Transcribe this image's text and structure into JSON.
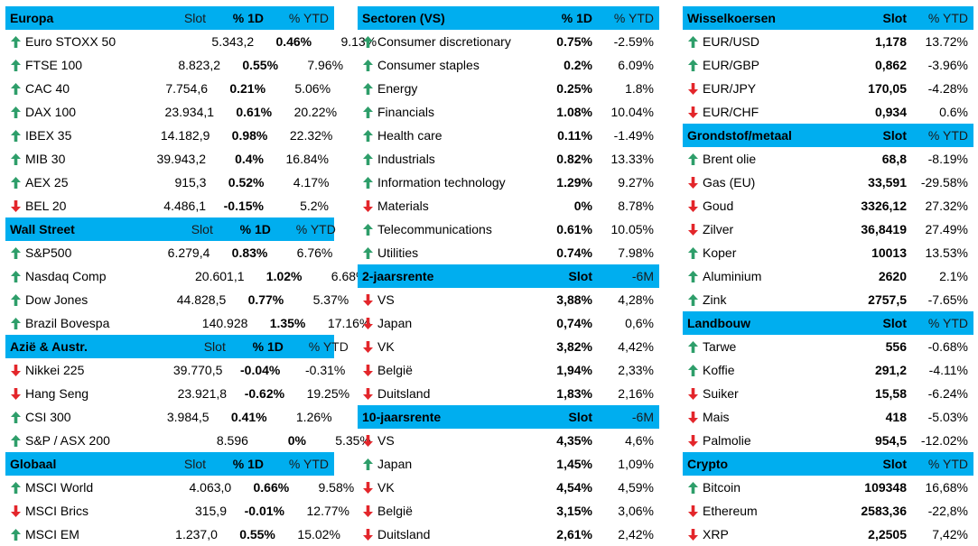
{
  "colors": {
    "header_bg": "#00AEEF",
    "arrow_up": "#2E9E6A",
    "arrow_down": "#E3262B"
  },
  "panels": [
    {
      "sections": [
        {
          "title": "Europa",
          "headers": [
            "Slot",
            "% 1D",
            "% YTD"
          ],
          "bold": [
            false,
            true,
            false
          ],
          "rows": [
            {
              "dir": "up",
              "name": "Euro STOXX 50",
              "c1": "5.343,2",
              "c2": "0.46%",
              "c3": "9.13%"
            },
            {
              "dir": "up",
              "name": "FTSE 100",
              "c1": "8.823,2",
              "c2": "0.55%",
              "c3": "7.96%"
            },
            {
              "dir": "up",
              "name": "CAC 40",
              "c1": "7.754,6",
              "c2": "0.21%",
              "c3": "5.06%"
            },
            {
              "dir": "up",
              "name": "DAX 100",
              "c1": "23.934,1",
              "c2": "0.61%",
              "c3": "20.22%"
            },
            {
              "dir": "up",
              "name": "IBEX 35",
              "c1": "14.182,9",
              "c2": "0.98%",
              "c3": "22.32%"
            },
            {
              "dir": "up",
              "name": "MIB 30",
              "c1": "39.943,2",
              "c2": "0.4%",
              "c3": "16.84%"
            },
            {
              "dir": "up",
              "name": "AEX 25",
              "c1": "915,3",
              "c2": "0.52%",
              "c3": "4.17%"
            },
            {
              "dir": "down",
              "name": "BEL 20",
              "c1": "4.486,1",
              "c2": "-0.15%",
              "c3": "5.2%"
            }
          ]
        },
        {
          "title": "Wall Street",
          "headers": [
            "Slot",
            "% 1D",
            "% YTD"
          ],
          "bold": [
            false,
            true,
            false
          ],
          "rows": [
            {
              "dir": "up",
              "name": "S&P500",
              "c1": "6.279,4",
              "c2": "0.83%",
              "c3": "6.76%"
            },
            {
              "dir": "up",
              "name": "Nasdaq Comp",
              "c1": "20.601,1",
              "c2": "1.02%",
              "c3": "6.68%"
            },
            {
              "dir": "up",
              "name": "Dow Jones",
              "c1": "44.828,5",
              "c2": "0.77%",
              "c3": "5.37%"
            },
            {
              "dir": "up",
              "name": "Brazil Bovespa",
              "c1": "140.928",
              "c2": "1.35%",
              "c3": "17.16%"
            }
          ]
        },
        {
          "title": "Azië & Austr.",
          "headers": [
            "Slot",
            "% 1D",
            "% YTD"
          ],
          "bold": [
            false,
            true,
            false
          ],
          "rows": [
            {
              "dir": "down",
              "name": "Nikkei 225",
              "c1": "39.770,5",
              "c2": "-0.04%",
              "c3": "-0.31%"
            },
            {
              "dir": "down",
              "name": "Hang Seng",
              "c1": "23.921,8",
              "c2": "-0.62%",
              "c3": "19.25%"
            },
            {
              "dir": "up",
              "name": "CSI 300",
              "c1": "3.984,5",
              "c2": "0.41%",
              "c3": "1.26%"
            },
            {
              "dir": "up",
              "name": "S&P / ASX 200",
              "c1": "8.596",
              "c2": "0%",
              "c3": "5.35%"
            }
          ]
        },
        {
          "title": "Globaal",
          "headers": [
            "Slot",
            "% 1D",
            "% YTD"
          ],
          "bold": [
            false,
            true,
            false
          ],
          "rows": [
            {
              "dir": "up",
              "name": "MSCI World",
              "c1": "4.063,0",
              "c2": "0.66%",
              "c3": "9.58%"
            },
            {
              "dir": "down",
              "name": "MSCI Brics",
              "c1": "315,9",
              "c2": "-0.01%",
              "c3": "12.77%"
            },
            {
              "dir": "up",
              "name": "MSCI EM",
              "c1": "1.237,0",
              "c2": "0.55%",
              "c3": "15.02%"
            }
          ]
        }
      ]
    },
    {
      "sections": [
        {
          "title": "Sectoren (VS)",
          "headers": [
            "",
            "% 1D",
            "% YTD"
          ],
          "bold": [
            false,
            true,
            false
          ],
          "rows": [
            {
              "dir": "up",
              "name": "Consumer discretionary",
              "c1": "",
              "c2": "0.75%",
              "c3": "-2.59%"
            },
            {
              "dir": "up",
              "name": "Consumer staples",
              "c1": "",
              "c2": "0.2%",
              "c3": "6.09%"
            },
            {
              "dir": "up",
              "name": "Energy",
              "c1": "",
              "c2": "0.25%",
              "c3": "1.8%"
            },
            {
              "dir": "up",
              "name": "Financials",
              "c1": "",
              "c2": "1.08%",
              "c3": "10.04%"
            },
            {
              "dir": "up",
              "name": "Health care",
              "c1": "",
              "c2": "0.11%",
              "c3": "-1.49%"
            },
            {
              "dir": "up",
              "name": "Industrials",
              "c1": "",
              "c2": "0.82%",
              "c3": "13.33%"
            },
            {
              "dir": "up",
              "name": "Information technology",
              "c1": "",
              "c2": "1.29%",
              "c3": "9.27%"
            },
            {
              "dir": "down",
              "name": "Materials",
              "c1": "",
              "c2": "0%",
              "c3": "8.78%"
            },
            {
              "dir": "up",
              "name": "Telecommunications",
              "c1": "",
              "c2": "0.61%",
              "c3": "10.05%"
            },
            {
              "dir": "up",
              "name": "Utilities",
              "c1": "",
              "c2": "0.74%",
              "c3": "7.98%"
            }
          ]
        },
        {
          "title": "2-jaarsrente",
          "headers": [
            "",
            "Slot",
            "-6M"
          ],
          "bold": [
            false,
            true,
            false
          ],
          "rows": [
            {
              "dir": "down",
              "name": "VS",
              "c1": "",
              "c2": "3,88%",
              "c3": "4,28%"
            },
            {
              "dir": "down",
              "name": "Japan",
              "c1": "",
              "c2": "0,74%",
              "c3": "0,6%"
            },
            {
              "dir": "down",
              "name": "VK",
              "c1": "",
              "c2": "3,82%",
              "c3": "4,42%"
            },
            {
              "dir": "down",
              "name": "België",
              "c1": "",
              "c2": "1,94%",
              "c3": "2,33%"
            },
            {
              "dir": "down",
              "name": "Duitsland",
              "c1": "",
              "c2": "1,83%",
              "c3": "2,16%"
            }
          ]
        },
        {
          "title": "10-jaarsrente",
          "headers": [
            "",
            "Slot",
            "-6M"
          ],
          "bold": [
            false,
            true,
            false
          ],
          "rows": [
            {
              "dir": "down",
              "name": "VS",
              "c1": "",
              "c2": "4,35%",
              "c3": "4,6%"
            },
            {
              "dir": "up",
              "name": "Japan",
              "c1": "",
              "c2": "1,45%",
              "c3": "1,09%"
            },
            {
              "dir": "down",
              "name": "VK",
              "c1": "",
              "c2": "4,54%",
              "c3": "4,59%"
            },
            {
              "dir": "down",
              "name": "België",
              "c1": "",
              "c2": "3,15%",
              "c3": "3,06%"
            },
            {
              "dir": "down",
              "name": "Duitsland",
              "c1": "",
              "c2": "2,61%",
              "c3": "2,42%"
            }
          ]
        }
      ]
    },
    {
      "sections": [
        {
          "title": "Wisselkoersen",
          "headers": [
            "",
            "Slot",
            "% YTD"
          ],
          "bold": [
            false,
            true,
            false
          ],
          "rows": [
            {
              "dir": "up",
              "name": "EUR/USD",
              "c1": "",
              "c2": "1,178",
              "c3": "13.72%"
            },
            {
              "dir": "up",
              "name": "EUR/GBP",
              "c1": "",
              "c2": "0,862",
              "c3": "-3.96%"
            },
            {
              "dir": "down",
              "name": "EUR/JPY",
              "c1": "",
              "c2": "170,05",
              "c3": "-4.28%"
            },
            {
              "dir": "down",
              "name": "EUR/CHF",
              "c1": "",
              "c2": "0,934",
              "c3": "0.6%"
            }
          ]
        },
        {
          "title": "Grondstof/metaal",
          "headers": [
            "",
            "Slot",
            "% YTD"
          ],
          "bold": [
            false,
            true,
            false
          ],
          "rows": [
            {
              "dir": "up",
              "name": "Brent olie",
              "c1": "",
              "c2": "68,8",
              "c3": "-8.19%"
            },
            {
              "dir": "down",
              "name": "Gas (EU)",
              "c1": "",
              "c2": "33,591",
              "c3": "-29.58%"
            },
            {
              "dir": "down",
              "name": "Goud",
              "c1": "",
              "c2": "3326,12",
              "c3": "27.32%"
            },
            {
              "dir": "down",
              "name": "Zilver",
              "c1": "",
              "c2": "36,8419",
              "c3": "27.49%"
            },
            {
              "dir": "up",
              "name": "Koper",
              "c1": "",
              "c2": "10013",
              "c3": "13.53%"
            },
            {
              "dir": "up",
              "name": "Aluminium",
              "c1": "",
              "c2": "2620",
              "c3": "2.1%"
            },
            {
              "dir": "up",
              "name": "Zink",
              "c1": "",
              "c2": "2757,5",
              "c3": "-7.65%"
            }
          ]
        },
        {
          "title": "Landbouw",
          "headers": [
            "",
            "Slot",
            "% YTD"
          ],
          "bold": [
            false,
            true,
            false
          ],
          "rows": [
            {
              "dir": "up",
              "name": "Tarwe",
              "c1": "",
              "c2": "556",
              "c3": "-0.68%"
            },
            {
              "dir": "up",
              "name": "Koffie",
              "c1": "",
              "c2": "291,2",
              "c3": "-4.11%"
            },
            {
              "dir": "down",
              "name": "Suiker",
              "c1": "",
              "c2": "15,58",
              "c3": "-6.24%"
            },
            {
              "dir": "down",
              "name": "Mais",
              "c1": "",
              "c2": "418",
              "c3": "-5.03%"
            },
            {
              "dir": "down",
              "name": "Palmolie",
              "c1": "",
              "c2": "954,5",
              "c3": "-12.02%"
            }
          ]
        },
        {
          "title": "Crypto",
          "headers": [
            "",
            "Slot",
            "% YTD"
          ],
          "bold": [
            false,
            true,
            false
          ],
          "rows": [
            {
              "dir": "up",
              "name": "Bitcoin",
              "c1": "",
              "c2": "109348",
              "c3": "16,68%"
            },
            {
              "dir": "down",
              "name": "Ethereum",
              "c1": "",
              "c2": "2583,36",
              "c3": "-22,8%"
            },
            {
              "dir": "down",
              "name": "XRP",
              "c1": "",
              "c2": "2,2505",
              "c3": "7,42%"
            }
          ]
        }
      ]
    }
  ]
}
